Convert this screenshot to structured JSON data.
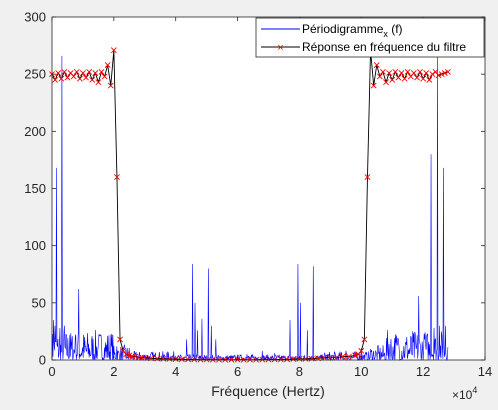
{
  "figure": {
    "background": "#f0f0f0"
  },
  "chart_data": {
    "type": "line",
    "title": "",
    "xlabel": "Fréquence (Hertz)",
    "ylabel": "",
    "x_exponent_label": "×10",
    "x_exponent_power": "4",
    "xlim": [
      0,
      140000
    ],
    "ylim": [
      0,
      300
    ],
    "xticks": [
      0,
      20000,
      40000,
      60000,
      80000,
      100000,
      120000,
      140000
    ],
    "xtick_labels": [
      "0",
      "2",
      "4",
      "6",
      "8",
      "10",
      "12",
      "14"
    ],
    "yticks": [
      0,
      50,
      100,
      150,
      200,
      250,
      300
    ],
    "ytick_labels": [
      "0",
      "50",
      "100",
      "150",
      "200",
      "250",
      "300"
    ],
    "grid": false,
    "legend_position": "top-right",
    "colors": {
      "periodogram": "#0000ff",
      "filter_line": "#000000",
      "filter_marker": "#ff0000",
      "axes_bg": "#ffffff",
      "axes_edge": "#262626"
    },
    "series": [
      {
        "name": "Périodigramme",
        "name_subscript": "x",
        "name_suffix": " (f)",
        "style": "line",
        "peaks": [
          {
            "x": 500,
            "y": 35
          },
          {
            "x": 1000,
            "y": 30
          },
          {
            "x": 1500,
            "y": 168
          },
          {
            "x": 2000,
            "y": 28
          },
          {
            "x": 2500,
            "y": 28
          },
          {
            "x": 3200,
            "y": 266
          },
          {
            "x": 4000,
            "y": 30
          },
          {
            "x": 5200,
            "y": 183
          },
          {
            "x": 5800,
            "y": 22
          },
          {
            "x": 7500,
            "y": 20
          },
          {
            "x": 8600,
            "y": 62
          },
          {
            "x": 10000,
            "y": 18
          },
          {
            "x": 13000,
            "y": 15
          },
          {
            "x": 15000,
            "y": 16
          },
          {
            "x": 18000,
            "y": 12
          },
          {
            "x": 21000,
            "y": 12
          },
          {
            "x": 25000,
            "y": 8
          },
          {
            "x": 30000,
            "y": 6
          },
          {
            "x": 38000,
            "y": 6
          },
          {
            "x": 42000,
            "y": 35
          },
          {
            "x": 43500,
            "y": 18
          },
          {
            "x": 45500,
            "y": 84
          },
          {
            "x": 46200,
            "y": 50
          },
          {
            "x": 47000,
            "y": 26
          },
          {
            "x": 48500,
            "y": 36
          },
          {
            "x": 50500,
            "y": 80
          },
          {
            "x": 51500,
            "y": 30
          },
          {
            "x": 53000,
            "y": 18
          },
          {
            "x": 58000,
            "y": 6
          },
          {
            "x": 63000,
            "y": 5
          },
          {
            "x": 68000,
            "y": 8
          },
          {
            "x": 72000,
            "y": 6
          },
          {
            "x": 77000,
            "y": 35
          },
          {
            "x": 79500,
            "y": 84
          },
          {
            "x": 80300,
            "y": 50
          },
          {
            "x": 81200,
            "y": 40
          },
          {
            "x": 82500,
            "y": 26
          },
          {
            "x": 84500,
            "y": 82
          },
          {
            "x": 86000,
            "y": 30
          },
          {
            "x": 90000,
            "y": 10
          },
          {
            "x": 95000,
            "y": 8
          },
          {
            "x": 100000,
            "y": 10
          },
          {
            "x": 106000,
            "y": 12
          },
          {
            "x": 109000,
            "y": 14
          },
          {
            "x": 112000,
            "y": 18
          },
          {
            "x": 114000,
            "y": 16
          },
          {
            "x": 117000,
            "y": 20
          },
          {
            "x": 118500,
            "y": 56
          },
          {
            "x": 120500,
            "y": 18
          },
          {
            "x": 122500,
            "y": 180
          },
          {
            "x": 123500,
            "y": 28
          },
          {
            "x": 124600,
            "y": 266
          },
          {
            "x": 125300,
            "y": 30
          },
          {
            "x": 126600,
            "y": 168
          },
          {
            "x": 127200,
            "y": 30
          }
        ]
      },
      {
        "name": "Réponse en fréquence du filtre",
        "style": "line+x-markers",
        "x": [
          0,
          1000,
          2000,
          3000,
          4000,
          5000,
          6000,
          7000,
          8000,
          9000,
          10000,
          11000,
          12000,
          13000,
          14000,
          15000,
          16000,
          17000,
          18000,
          19000,
          20000,
          21000,
          22000,
          23000,
          24000,
          25000,
          26000,
          27000,
          28000,
          29000,
          30000,
          32000,
          34000,
          36000,
          38000,
          40000,
          42000,
          44000,
          46000,
          48000,
          50000,
          52000,
          54000,
          56000,
          58000,
          60000,
          62000,
          64000,
          66000,
          68000,
          70000,
          72000,
          74000,
          76000,
          78000,
          80000,
          82000,
          84000,
          86000,
          88000,
          90000,
          92000,
          94000,
          96000,
          98000,
          99000,
          100000,
          101000,
          102000,
          103000,
          104000,
          105000,
          106000,
          107000,
          108000,
          109000,
          110000,
          111000,
          112000,
          113000,
          114000,
          115000,
          116000,
          117000,
          118000,
          119000,
          120000,
          121000,
          122000,
          123000,
          124000,
          125000,
          126000,
          127000,
          128000
        ],
        "y": [
          250,
          245,
          251,
          246,
          252,
          247,
          251,
          248,
          252,
          246,
          251,
          247,
          252,
          245,
          251,
          243,
          252,
          248,
          258,
          240,
          271,
          160,
          18,
          8,
          5,
          4,
          3,
          3,
          2,
          2,
          2,
          1.5,
          1.2,
          1,
          1,
          0.8,
          0.6,
          0.5,
          0.5,
          0.4,
          0.4,
          0.3,
          0.3,
          0.3,
          0.3,
          0.3,
          0.3,
          0.3,
          0.3,
          0.4,
          0.4,
          0.5,
          0.5,
          0.6,
          0.8,
          1,
          1,
          1.2,
          1.5,
          2,
          2,
          2,
          3,
          3,
          4,
          5,
          8,
          18,
          160,
          271,
          240,
          258,
          248,
          252,
          243,
          251,
          245,
          252,
          247,
          251,
          246,
          252,
          248,
          251,
          247,
          252,
          246,
          251,
          245,
          250,
          252,
          249,
          250,
          251,
          252
        ]
      }
    ]
  }
}
